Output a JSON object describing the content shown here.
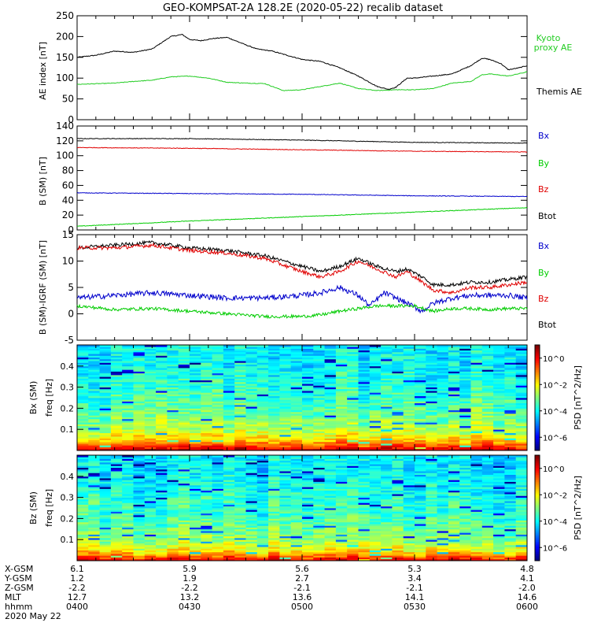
{
  "title": "GEO-KOMPSAT-2A 128.2E (2020-05-22) recalib dataset",
  "colors": {
    "black": "#000000",
    "green": "#00cc00",
    "red": "#e00000",
    "blue": "#0000cc",
    "kyoto": "#22cc22"
  },
  "chart_data": [
    {
      "type": "line",
      "id": "ae",
      "ylabel": "AE index [nT]",
      "ylim": [
        0,
        250
      ],
      "yticks": [
        0,
        50,
        100,
        150,
        200,
        250
      ],
      "xlim": [
        0,
        120
      ],
      "series": [
        {
          "name": "Themis AE",
          "color": "#000000",
          "x": [
            0,
            5,
            10,
            15,
            20,
            25,
            28,
            30,
            33,
            36,
            40,
            45,
            48,
            52,
            56,
            60,
            65,
            70,
            75,
            80,
            83,
            85,
            88,
            90,
            95,
            100,
            105,
            108,
            110,
            113,
            115,
            118,
            120
          ],
          "values": [
            150,
            155,
            165,
            162,
            170,
            200,
            205,
            193,
            190,
            195,
            198,
            180,
            170,
            165,
            155,
            145,
            140,
            125,
            105,
            80,
            73,
            78,
            100,
            100,
            105,
            110,
            130,
            148,
            145,
            135,
            120,
            125,
            130
          ]
        },
        {
          "name": "Kyoto proxy AE",
          "color": "#22cc22",
          "x": [
            0,
            10,
            15,
            20,
            25,
            30,
            35,
            40,
            45,
            50,
            55,
            60,
            65,
            70,
            75,
            80,
            85,
            90,
            95,
            100,
            105,
            108,
            110,
            115,
            120
          ],
          "values": [
            85,
            88,
            92,
            95,
            103,
            105,
            100,
            90,
            88,
            87,
            70,
            72,
            80,
            88,
            75,
            70,
            72,
            72,
            75,
            88,
            92,
            108,
            110,
            105,
            115
          ]
        }
      ]
    },
    {
      "type": "line",
      "id": "bsm",
      "ylabel": "B (SM) [nT]",
      "ylim": [
        0,
        140
      ],
      "yticks": [
        0,
        20,
        40,
        60,
        80,
        100,
        120,
        140
      ],
      "xlim": [
        0,
        120
      ],
      "series": [
        {
          "name": "Btot",
          "color": "#000000",
          "x": [
            0,
            30,
            60,
            90,
            120
          ],
          "values": [
            123,
            123,
            121,
            118,
            117
          ]
        },
        {
          "name": "By",
          "color": "#00cc00",
          "x": [
            0,
            30,
            60,
            90,
            120
          ],
          "values": [
            5,
            12,
            18,
            24,
            30
          ]
        },
        {
          "name": "Bx",
          "color": "#0000cc",
          "x": [
            0,
            30,
            60,
            90,
            120
          ],
          "values": [
            50,
            49,
            48,
            46,
            45
          ]
        },
        {
          "name": "Bz",
          "color": "#e00000",
          "x": [
            0,
            30,
            60,
            90,
            120
          ],
          "values": [
            111,
            110,
            108,
            106,
            105
          ]
        }
      ]
    },
    {
      "type": "line",
      "id": "bdiff",
      "ylabel": "B (SM)-IGRF (SM) [nT]",
      "ylim": [
        -5,
        15
      ],
      "yticks": [
        -5,
        0,
        5,
        10,
        15
      ],
      "xlim": [
        0,
        120
      ],
      "series": [
        {
          "name": "Btot",
          "color": "#000000",
          "x": [
            0,
            10,
            20,
            30,
            40,
            50,
            60,
            65,
            70,
            75,
            80,
            85,
            88,
            92,
            95,
            100,
            105,
            110,
            115,
            120
          ],
          "values": [
            12.5,
            13,
            13.5,
            12.5,
            12,
            11,
            9,
            8,
            9,
            10.5,
            9,
            8,
            8.5,
            7,
            5.5,
            5.5,
            6,
            6,
            6.5,
            7
          ]
        },
        {
          "name": "Bz",
          "color": "#e00000",
          "x": [
            0,
            10,
            20,
            30,
            40,
            50,
            60,
            65,
            70,
            75,
            80,
            85,
            88,
            92,
            95,
            100,
            105,
            110,
            115,
            120
          ],
          "values": [
            12.5,
            12.5,
            13,
            12,
            11.5,
            10.5,
            8,
            7,
            8,
            10,
            8.5,
            7,
            8,
            6,
            4.5,
            4,
            5,
            5,
            5.5,
            6
          ]
        },
        {
          "name": "Bx",
          "color": "#0000cc",
          "x": [
            0,
            10,
            20,
            30,
            40,
            50,
            60,
            65,
            70,
            75,
            78,
            82,
            85,
            88,
            92,
            95,
            100,
            105,
            110,
            115,
            120
          ],
          "values": [
            3,
            3.5,
            4,
            3.5,
            3,
            3,
            3.5,
            4,
            5,
            3.5,
            1.5,
            4,
            3,
            2,
            0.5,
            2,
            3,
            3.5,
            3.5,
            3.5,
            3
          ]
        },
        {
          "name": "By",
          "color": "#00cc00",
          "x": [
            0,
            10,
            20,
            30,
            40,
            50,
            60,
            65,
            70,
            75,
            80,
            85,
            90,
            95,
            100,
            105,
            110,
            115,
            120
          ],
          "values": [
            1.5,
            0.8,
            1,
            0.5,
            0,
            -0.5,
            -0.5,
            -0.2,
            0.5,
            1,
            1.5,
            1.5,
            1.5,
            0.5,
            1,
            1,
            0.8,
            1,
            1
          ]
        }
      ]
    },
    {
      "type": "heatmap",
      "id": "bx-spec",
      "ylabel": "Bx (SM)",
      "ylabel2": "freq [Hz]",
      "ylim": [
        0,
        0.5
      ],
      "yticks": [
        0.1,
        0.2,
        0.3,
        0.4
      ],
      "colorbar": {
        "label": "PSD [nT^2/Hz]",
        "ticks": [
          "10^0",
          "10^-2",
          "10^-4",
          "10^-6"
        ],
        "tick_exponents": [
          0,
          -2,
          -4,
          -6
        ],
        "range": [
          -7,
          1
        ]
      },
      "value_profile": {
        "freq": [
          0.0,
          0.02,
          0.05,
          0.1,
          0.2,
          0.3,
          0.4,
          0.5
        ],
        "log_psd": [
          0.6,
          -0.4,
          -1.6,
          -2.6,
          -3.3,
          -3.7,
          -4.0,
          -4.1
        ]
      }
    },
    {
      "type": "heatmap",
      "id": "bz-spec",
      "ylabel": "Bz (SM)",
      "ylabel2": "freq [Hz]",
      "ylim": [
        0,
        0.5
      ],
      "yticks": [
        0.1,
        0.2,
        0.3,
        0.4
      ],
      "colorbar": {
        "label": "PSD [nT^2/Hz]",
        "ticks": [
          "10^0",
          "10^-2",
          "10^-4",
          "10^-6"
        ],
        "tick_exponents": [
          0,
          -2,
          -4,
          -6
        ],
        "range": [
          -7,
          1
        ]
      },
      "value_profile": {
        "freq": [
          0.0,
          0.02,
          0.05,
          0.1,
          0.2,
          0.3,
          0.4,
          0.5
        ],
        "log_psd": [
          0.3,
          -0.8,
          -2.0,
          -2.9,
          -3.5,
          -3.8,
          -4.1,
          -4.2
        ]
      }
    }
  ],
  "legends": {
    "ae": [
      {
        "text": "Kyoto",
        "color": "#22cc22"
      },
      {
        "text": "proxy AE",
        "color": "#22cc22"
      },
      {
        "text": "Themis AE",
        "color": "#000000"
      }
    ],
    "bsm": [
      {
        "text": "Bx",
        "color": "#0000cc"
      },
      {
        "text": "By",
        "color": "#00cc00"
      },
      {
        "text": "Bz",
        "color": "#e00000"
      },
      {
        "text": "Btot",
        "color": "#000000"
      }
    ],
    "bdiff": [
      {
        "text": "Bx",
        "color": "#0000cc"
      },
      {
        "text": "By",
        "color": "#00cc00"
      },
      {
        "text": "Bz",
        "color": "#e00000"
      },
      {
        "text": "Btot",
        "color": "#000000"
      }
    ]
  },
  "ephemeris": {
    "row_labels": [
      "X-GSM",
      "Y-GSM",
      "Z-GSM",
      "MLT",
      "hhmm",
      "2020 May 22"
    ],
    "columns": [
      {
        "x": 0,
        "values": [
          "6.1",
          "1.2",
          "-2.2",
          "12.7",
          "0400"
        ]
      },
      {
        "x": 30,
        "values": [
          "5.9",
          "1.9",
          "-2.2",
          "13.2",
          "0430"
        ]
      },
      {
        "x": 60,
        "values": [
          "5.6",
          "2.7",
          "-2.1",
          "13.6",
          "0500"
        ]
      },
      {
        "x": 90,
        "values": [
          "5.3",
          "3.4",
          "-2.1",
          "14.1",
          "0530"
        ]
      },
      {
        "x": 120,
        "values": [
          "4.8",
          "4.1",
          "-2.0",
          "14.6",
          "0600"
        ]
      }
    ]
  }
}
